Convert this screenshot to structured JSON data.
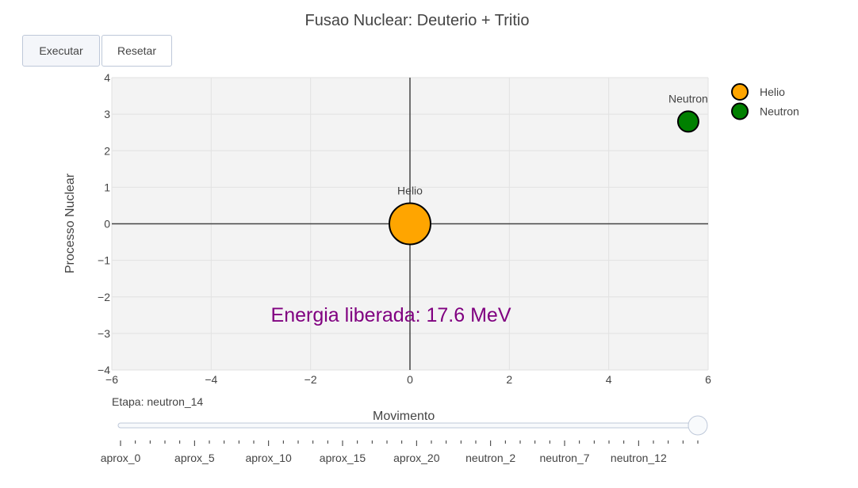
{
  "title": "Fusao Nuclear: Deuterio + Tritio",
  "buttons": {
    "execute": "Executar",
    "reset": "Resetar"
  },
  "chart_data": {
    "type": "scatter",
    "title": "Fusao Nuclear: Deuterio + Tritio",
    "xlabel": "",
    "ylabel": "Processo Nuclear",
    "xlim": [
      -6,
      6
    ],
    "ylim": [
      -4,
      4
    ],
    "xticks": [
      -6,
      -4,
      -2,
      0,
      2,
      4,
      6
    ],
    "yticks": [
      4,
      3,
      2,
      1,
      0,
      -1,
      -2,
      -3,
      -4
    ],
    "grid": true,
    "zero_lines": true,
    "legend_position": "top-right",
    "series": [
      {
        "name": "Helio",
        "x": [
          0
        ],
        "y": [
          0
        ],
        "text": "Helio",
        "color": "#FFA500",
        "marker_size": "large"
      },
      {
        "name": "Neutron",
        "x": [
          5.6
        ],
        "y": [
          2.8
        ],
        "text": "Neutron",
        "color": "#008000",
        "marker_size": "small"
      }
    ],
    "annotations": [
      {
        "text": "Energia liberada: 17.6 MeV",
        "x": -2.8,
        "y": -2.5,
        "color": "#800080"
      }
    ]
  },
  "slider": {
    "title": "Movimento",
    "current_prefix": "Etapa: ",
    "current_value": "neutron_14",
    "current_position": 1.0,
    "labels": [
      "aprox_0",
      "aprox_5",
      "aprox_10",
      "aprox_15",
      "aprox_20",
      "neutron_2",
      "neutron_7",
      "neutron_12"
    ]
  },
  "colors": {
    "plot_bg": "#f3f3f3",
    "helio": "#FFA500",
    "neutron": "#008000",
    "annotation": "#800080",
    "axis_zero": "#444444"
  }
}
